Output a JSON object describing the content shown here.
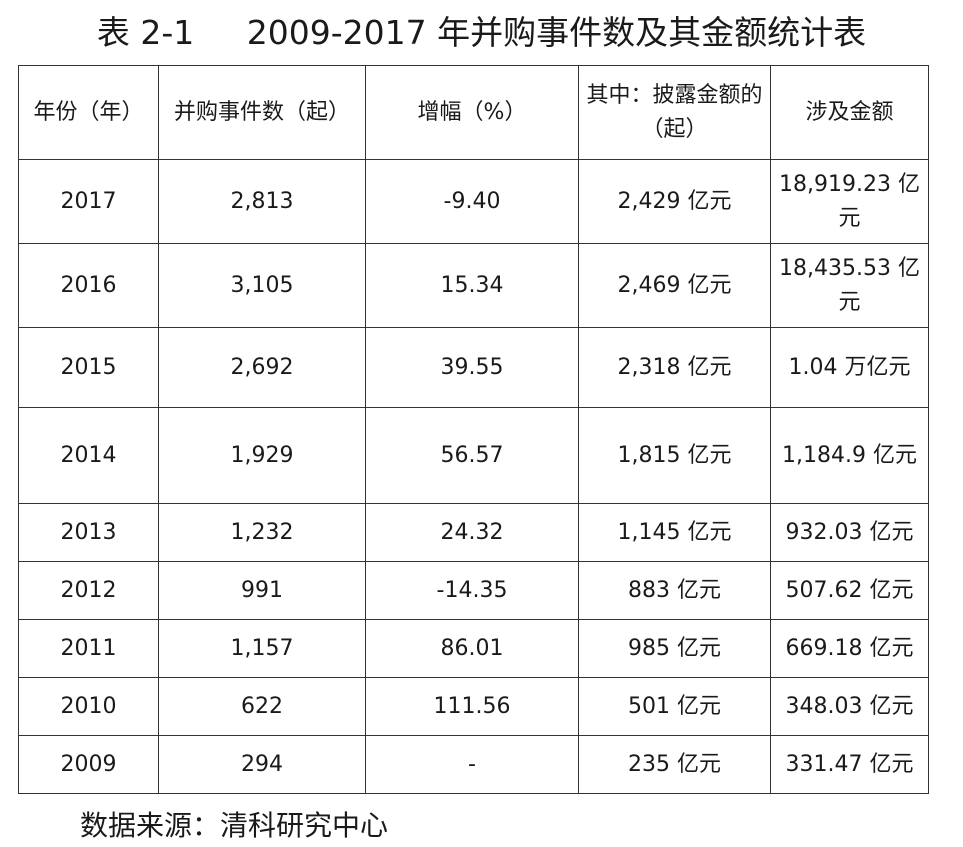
{
  "title": "表 2-1     2009-2017 年并购事件数及其金额统计表",
  "headers": [
    "年份（年）",
    "并购事件数（起）",
    "增幅（%）",
    "其中：披露金额的（起）",
    "涉及金额"
  ],
  "rows": [
    {
      "year": "2017",
      "count": "2,813",
      "growth": "-9.40",
      "disclosed": "2,429 亿元",
      "amount": "18,919.23 亿元"
    },
    {
      "year": "2016",
      "count": "3,105",
      "growth": "15.34",
      "disclosed": "2,469 亿元",
      "amount": "18,435.53 亿元"
    },
    {
      "year": "2015",
      "count": "2,692",
      "growth": "39.55",
      "disclosed": "2,318 亿元",
      "amount": "1.04 万亿元"
    },
    {
      "year": "2014",
      "count": "1,929",
      "growth": "56.57",
      "disclosed": "1,815 亿元",
      "amount": "1,184.9 亿元"
    },
    {
      "year": "2013",
      "count": "1,232",
      "growth": "24.32",
      "disclosed": "1,145 亿元",
      "amount": "932.03 亿元"
    },
    {
      "year": "2012",
      "count": "991",
      "growth": "-14.35",
      "disclosed": "883 亿元",
      "amount": "507.62 亿元"
    },
    {
      "year": "2011",
      "count": "1,157",
      "growth": "86.01",
      "disclosed": "985 亿元",
      "amount": "669.18 亿元"
    },
    {
      "year": "2010",
      "count": "622",
      "growth": "111.56",
      "disclosed": "501 亿元",
      "amount": "348.03 亿元"
    },
    {
      "year": "2009",
      "count": "294",
      "growth": "-",
      "disclosed": "235 亿元",
      "amount": "331.47 亿元"
    }
  ],
  "source": "数据来源：清科研究中心"
}
